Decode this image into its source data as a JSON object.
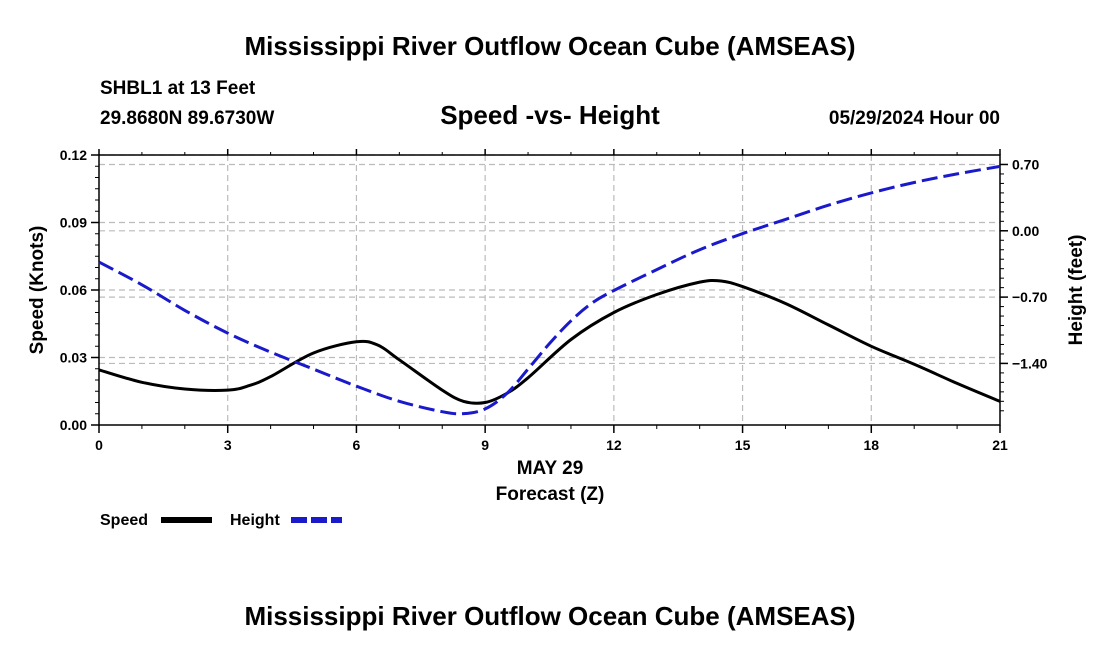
{
  "title": "Mississippi River Outflow Ocean Cube (AMSEAS)",
  "footer_title": "Mississippi River Outflow Ocean Cube (AMSEAS)",
  "station": "SHBL1 at 13 Feet",
  "coords": "29.8680N  89.6730W",
  "plot_title": "Speed -vs- Height",
  "datetime": "05/29/2024 Hour 00",
  "chart_data": {
    "type": "line",
    "title": "Speed -vs- Height",
    "xlabel_date": "MAY 29",
    "xlabel": "Forecast (Z)",
    "ylabel": "Speed (Knots)",
    "y2label": "Height (feet)",
    "xlim": [
      0,
      21
    ],
    "ylim": [
      0,
      0.12
    ],
    "y2lim": [
      -2.05,
      0.8
    ],
    "x_ticks": [
      0,
      3,
      6,
      9,
      12,
      15,
      18,
      21
    ],
    "x_tick_labels": [
      "0",
      "3",
      "6",
      "9",
      "12",
      "15",
      "18",
      "21"
    ],
    "y_ticks": [
      0,
      0.03,
      0.06,
      0.09,
      0.12
    ],
    "y_tick_labels": [
      "0.00",
      "0.03",
      "0.06",
      "0.09",
      "0.12"
    ],
    "y2_ticks": [
      0.7,
      0.0,
      -0.7,
      -1.4
    ],
    "y2_tick_labels": [
      "0.70",
      "0.00",
      "−0.70",
      "−1.40"
    ],
    "legend": [
      "Speed",
      "Height"
    ],
    "series": [
      {
        "name": "Speed",
        "axis": "left",
        "color": "#000000",
        "dash": "solid",
        "x": [
          0,
          1,
          2,
          3,
          3.5,
          4,
          5,
          6,
          6.5,
          7,
          8,
          8.5,
          9,
          9.5,
          10,
          11,
          12,
          13,
          14,
          14.5,
          15,
          16,
          17,
          18,
          19,
          20,
          21
        ],
        "values": [
          0.0245,
          0.019,
          0.016,
          0.0155,
          0.0175,
          0.0215,
          0.032,
          0.037,
          0.0355,
          0.029,
          0.0155,
          0.0105,
          0.01,
          0.014,
          0.021,
          0.038,
          0.05,
          0.058,
          0.0635,
          0.064,
          0.0615,
          0.054,
          0.0445,
          0.035,
          0.027,
          0.0185,
          0.0105
        ]
      },
      {
        "name": "Height",
        "axis": "right",
        "color": "#1a1acc",
        "dash": "dashed",
        "x": [
          0,
          1,
          2,
          3,
          4,
          5,
          6,
          7,
          8,
          8.5,
          9,
          9.5,
          10,
          10.5,
          11,
          11.5,
          12,
          13,
          14,
          15,
          16,
          17,
          18,
          19,
          20,
          21
        ],
        "values": [
          -0.33,
          -0.57,
          -0.84,
          -1.08,
          -1.28,
          -1.46,
          -1.64,
          -1.8,
          -1.91,
          -1.93,
          -1.88,
          -1.72,
          -1.46,
          -1.19,
          -0.95,
          -0.76,
          -0.63,
          -0.41,
          -0.2,
          -0.03,
          0.12,
          0.27,
          0.4,
          0.51,
          0.6,
          0.68
        ]
      }
    ]
  }
}
